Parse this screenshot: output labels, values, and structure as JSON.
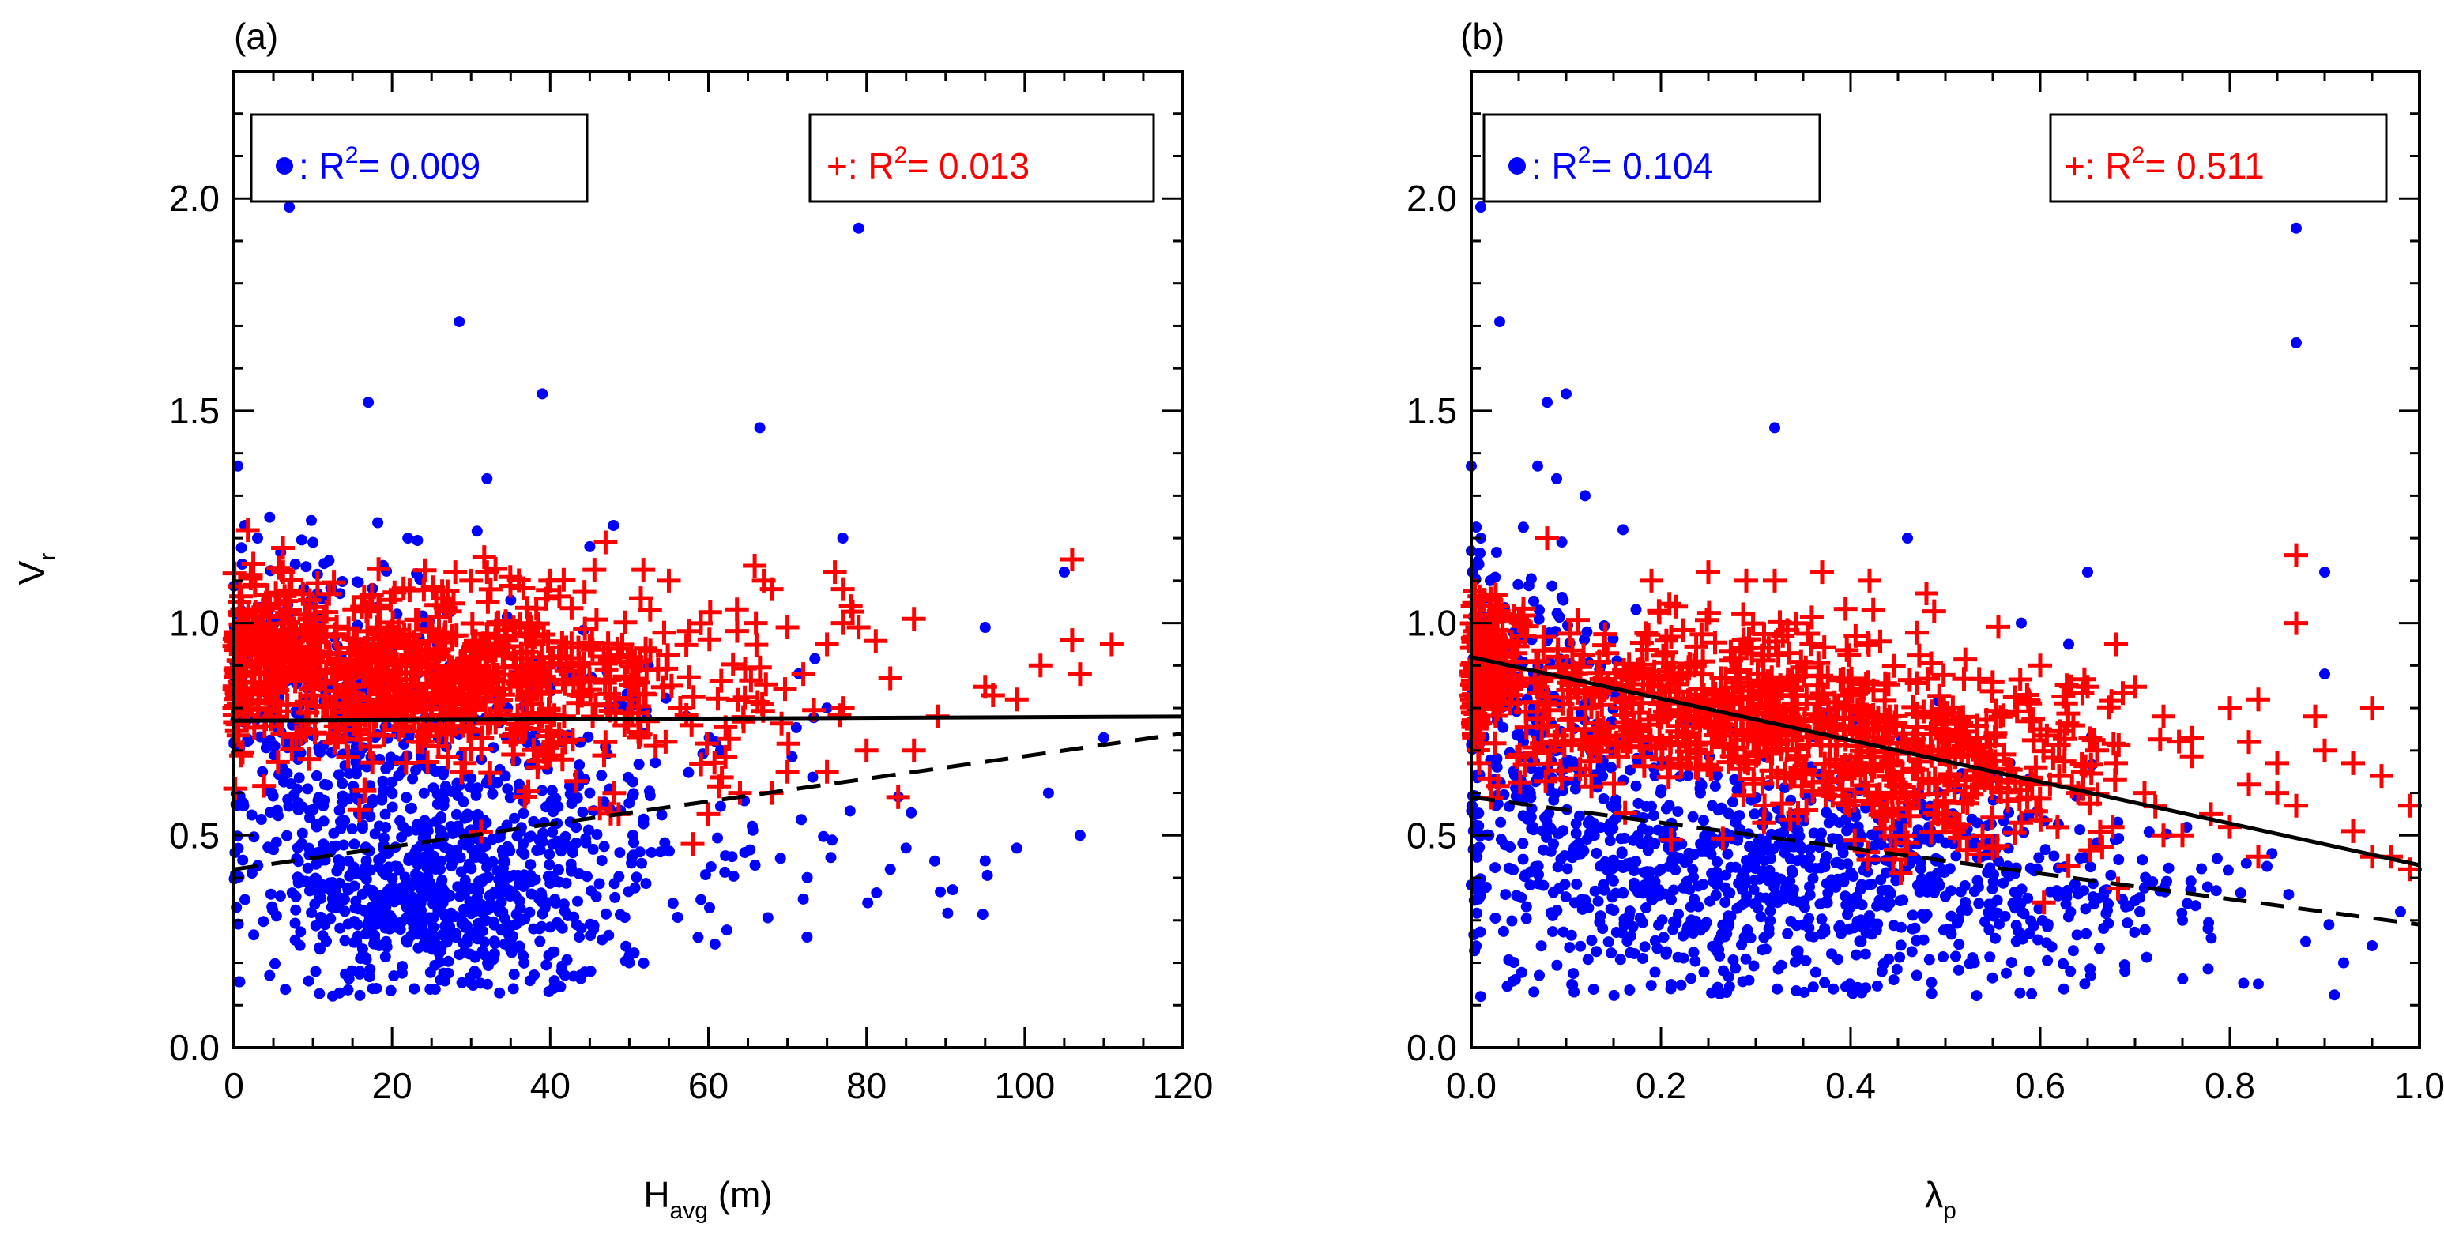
{
  "figure": {
    "y_axis_label_main": "V",
    "y_axis_label_sub": "r"
  },
  "chart_data": [
    {
      "type": "scatter",
      "panel_label": "(a)",
      "xlabel_main": "H",
      "xlabel_sub": "avg",
      "xlabel_suffix": " (m)",
      "xlim": [
        0,
        120
      ],
      "ylim": [
        0,
        2.3
      ],
      "x_ticks": [
        "0",
        "20",
        "40",
        "60",
        "80",
        "100",
        "120"
      ],
      "y_ticks": [
        "0.0",
        "0.5",
        "1.0",
        "1.5",
        "2.0"
      ],
      "legend_left": {
        "marker_prefix": ": R",
        "sup": "2",
        "value_text": "= 0.009",
        "color": "#0000ff"
      },
      "legend_right": {
        "marker_prefix": "+: R",
        "sup": "2",
        "value_text": "= 0.013",
        "color": "#ff0000"
      },
      "series": [
        {
          "marker": "dot",
          "color": "#0000ff",
          "cloud": [
            {
              "cx": 26,
              "cy": 0.36,
              "sx": 11,
              "sy": 0.13,
              "n": 650
            },
            {
              "cx": 24,
              "cy": 0.7,
              "sx": 14,
              "sy": 0.2,
              "n": 350
            },
            {
              "cx": 50,
              "cy": 0.5,
              "sx": 22,
              "sy": 0.16,
              "n": 140
            },
            {
              "cx": 10,
              "cy": 0.85,
              "sx": 8,
              "sy": 0.17,
              "n": 160
            }
          ],
          "points": [
            [
              0.5,
              1.37
            ],
            [
              7,
              1.98
            ],
            [
              79,
              1.93
            ],
            [
              28.5,
              1.71
            ],
            [
              17,
              1.52
            ],
            [
              39,
              1.54
            ],
            [
              66.5,
              1.46
            ],
            [
              32,
              1.34
            ],
            [
              48,
              1.23
            ],
            [
              77,
              1.2
            ],
            [
              105,
              1.12
            ],
            [
              95,
              0.99
            ],
            [
              99,
              0.47
            ],
            [
              95,
              0.44
            ],
            [
              107,
              0.5
            ],
            [
              103,
              0.6
            ],
            [
              85,
              0.47
            ],
            [
              83,
              0.42
            ],
            [
              72,
              0.35
            ],
            [
              63,
              0.45
            ],
            [
              50,
              0.2
            ],
            [
              75,
              0.8
            ],
            [
              110,
              0.73
            ],
            [
              3,
              1.2
            ],
            [
              10,
              1.19
            ],
            [
              22,
              1.2
            ],
            [
              45,
              1.18
            ]
          ]
        },
        {
          "marker": "plus",
          "color": "#ff0000",
          "cloud": [
            {
              "cx": 24,
              "cy": 0.88,
              "sx": 14,
              "sy": 0.1,
              "n": 650
            },
            {
              "cx": 4,
              "cy": 0.95,
              "sx": 3,
              "sy": 0.08,
              "n": 140
            },
            {
              "cx": 50,
              "cy": 0.8,
              "sx": 12,
              "sy": 0.14,
              "n": 100
            }
          ],
          "points": [
            [
              47,
              1.19
            ],
            [
              28,
              1.12
            ],
            [
              30,
              1.1
            ],
            [
              32,
              1.12
            ],
            [
              40,
              1.1
            ],
            [
              55,
              1.1
            ],
            [
              67,
              1.1
            ],
            [
              68,
              1.08
            ],
            [
              76,
              1.12
            ],
            [
              77,
              1.08
            ],
            [
              78,
              1.04
            ],
            [
              77,
              1.0
            ],
            [
              66,
              1.0
            ],
            [
              70,
              0.99
            ],
            [
              75,
              0.95
            ],
            [
              79,
              0.99
            ],
            [
              72,
              0.88
            ],
            [
              83,
              0.87
            ],
            [
              86,
              1.01
            ],
            [
              95,
              0.85
            ],
            [
              96,
              0.83
            ],
            [
              99,
              0.82
            ],
            [
              102,
              0.9
            ],
            [
              106,
              0.96
            ],
            [
              107,
              0.88
            ],
            [
              111,
              0.95
            ],
            [
              106,
              1.15
            ],
            [
              89,
              0.78
            ],
            [
              86,
              0.7
            ],
            [
              84,
              0.59
            ],
            [
              80,
              0.7
            ],
            [
              77,
              0.8
            ],
            [
              75,
              0.65
            ],
            [
              70,
              0.65
            ],
            [
              68,
              0.6
            ],
            [
              64,
              0.6
            ],
            [
              60,
              0.55
            ],
            [
              58,
              0.48
            ]
          ]
        }
      ],
      "fit_lines": [
        {
          "style": "solid",
          "points": [
            [
              0,
              0.77
            ],
            [
              120,
              0.78
            ]
          ]
        },
        {
          "style": "dashed",
          "points": [
            [
              0,
              0.42
            ],
            [
              120,
              0.74
            ]
          ]
        }
      ]
    },
    {
      "type": "scatter",
      "panel_label": "(b)",
      "xlabel_main": "λ",
      "xlabel_sub": "p",
      "xlabel_suffix": "",
      "xlim": [
        0,
        1
      ],
      "ylim": [
        0,
        2.3
      ],
      "x_ticks": [
        "0.0",
        "0.2",
        "0.4",
        "0.6",
        "0.8",
        "1.0"
      ],
      "y_ticks": [
        "0.0",
        "0.5",
        "1.0",
        "1.5",
        "2.0"
      ],
      "legend_left": {
        "marker_prefix": ": R",
        "sup": "2",
        "value_text": "= 0.104",
        "color": "#0000ff"
      },
      "legend_right": {
        "marker_prefix": "+: R",
        "sup": "2",
        "value_text": "= 0.511",
        "color": "#ff0000"
      },
      "series": [
        {
          "marker": "dot",
          "color": "#0000ff",
          "cloud": [
            {
              "cx": 0.3,
              "cy": 0.4,
              "sx": 0.16,
              "sy": 0.14,
              "n": 800
            },
            {
              "cx": 0.05,
              "cy": 0.75,
              "sx": 0.05,
              "sy": 0.2,
              "n": 250
            },
            {
              "cx": 0.55,
              "cy": 0.35,
              "sx": 0.15,
              "sy": 0.12,
              "n": 200
            }
          ],
          "points": [
            [
              0.01,
              1.98
            ],
            [
              0.03,
              1.71
            ],
            [
              0.0,
              1.37
            ],
            [
              0.08,
              1.52
            ],
            [
              0.1,
              1.54
            ],
            [
              0.07,
              1.37
            ],
            [
              0.09,
              1.34
            ],
            [
              0.32,
              1.46
            ],
            [
              0.12,
              1.3
            ],
            [
              0.16,
              1.22
            ],
            [
              0.46,
              1.2
            ],
            [
              0.65,
              1.12
            ],
            [
              0.87,
              1.93
            ],
            [
              0.87,
              1.66
            ],
            [
              0.9,
              1.12
            ],
            [
              0.9,
              0.88
            ],
            [
              0.83,
              0.15
            ],
            [
              0.92,
              0.2
            ],
            [
              0.95,
              0.24
            ],
            [
              0.98,
              0.32
            ],
            [
              0.88,
              0.25
            ],
            [
              0.75,
              0.3
            ],
            [
              0.0,
              1.17
            ],
            [
              0.01,
              1.2
            ],
            [
              0.02,
              1.1
            ],
            [
              0.63,
              0.95
            ],
            [
              0.58,
              1.0
            ]
          ]
        },
        {
          "marker": "plus",
          "color": "#ff0000",
          "cloud": [
            {
              "cx": 0.25,
              "cy": 0.8,
              "sx": 0.15,
              "sy": 0.1,
              "n": 600
            },
            {
              "cx": 0.02,
              "cy": 0.93,
              "sx": 0.02,
              "sy": 0.08,
              "n": 120
            },
            {
              "cx": 0.5,
              "cy": 0.66,
              "sx": 0.1,
              "sy": 0.1,
              "n": 250
            }
          ],
          "points": [
            [
              0.08,
              1.2
            ],
            [
              0.19,
              1.1
            ],
            [
              0.25,
              1.12
            ],
            [
              0.29,
              1.1
            ],
            [
              0.32,
              1.1
            ],
            [
              0.37,
              1.12
            ],
            [
              0.42,
              1.1
            ],
            [
              0.48,
              1.07
            ],
            [
              0.6,
              0.9
            ],
            [
              0.65,
              0.85
            ],
            [
              0.68,
              0.95
            ],
            [
              0.7,
              0.85
            ],
            [
              0.73,
              0.78
            ],
            [
              0.76,
              0.73
            ],
            [
              0.8,
              0.8
            ],
            [
              0.83,
              0.82
            ],
            [
              0.82,
              0.72
            ],
            [
              0.85,
              0.67
            ],
            [
              0.87,
              1.16
            ],
            [
              0.87,
              1.0
            ],
            [
              0.89,
              0.78
            ],
            [
              0.9,
              0.7
            ],
            [
              0.93,
              0.67
            ],
            [
              0.95,
              0.8
            ],
            [
              0.96,
              0.64
            ],
            [
              0.99,
              0.57
            ],
            [
              0.93,
              0.51
            ],
            [
              0.95,
              0.45
            ],
            [
              0.97,
              0.45
            ],
            [
              0.99,
              0.42
            ],
            [
              0.87,
              0.57
            ],
            [
              0.85,
              0.6
            ],
            [
              0.82,
              0.62
            ],
            [
              0.8,
              0.52
            ],
            [
              0.78,
              0.55
            ],
            [
              0.75,
              0.5
            ],
            [
              0.73,
              0.5
            ],
            [
              0.71,
              0.6
            ],
            [
              0.68,
              0.67
            ],
            [
              0.66,
              0.7
            ],
            [
              0.64,
              0.6
            ],
            [
              0.62,
              0.64
            ],
            [
              0.6,
              0.75
            ],
            [
              0.58,
              0.53
            ],
            [
              0.55,
              0.47
            ],
            [
              0.83,
              0.45
            ]
          ]
        }
      ],
      "fit_lines": [
        {
          "style": "solid",
          "points": [
            [
              0,
              0.92
            ],
            [
              1,
              0.43
            ]
          ]
        },
        {
          "style": "dashed",
          "points": [
            [
              0,
              0.59
            ],
            [
              1,
              0.29
            ]
          ]
        }
      ]
    }
  ]
}
